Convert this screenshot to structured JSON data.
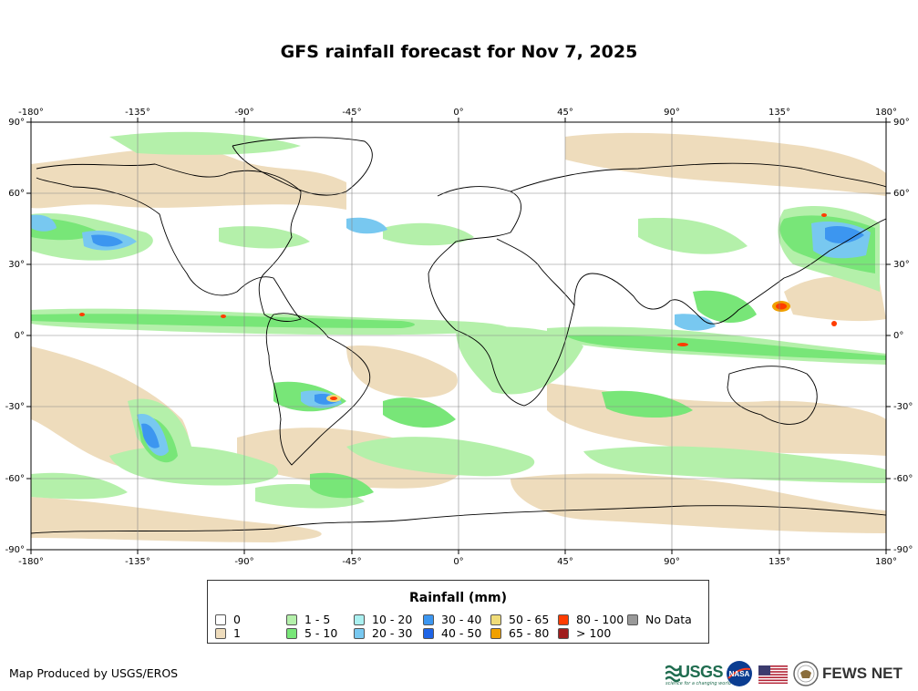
{
  "title": "GFS rainfall forecast for Nov 7, 2025",
  "map": {
    "lon_ticks": [
      "-180°",
      "-135°",
      "-90°",
      "-45°",
      "0°",
      "45°",
      "90°",
      "135°",
      "180°"
    ],
    "lat_ticks": [
      "90°",
      "60°",
      "30°",
      "0°",
      "-30°",
      "-60°",
      "-90°"
    ],
    "lon_range": [
      -180,
      180
    ],
    "lat_range": [
      -90,
      90
    ],
    "grid": true,
    "projection": "equirectangular",
    "base_colors": {
      "land_border": "#000000",
      "ocean_no_rain": "#ffffff"
    }
  },
  "legend": {
    "title": "Rainfall (mm)",
    "items": [
      {
        "label": "0",
        "color": "#ffffff"
      },
      {
        "label": "1",
        "color": "#eedcbc"
      },
      {
        "label": "1 - 5",
        "color": "#b4f0aa"
      },
      {
        "label": "5 - 10",
        "color": "#78e678"
      },
      {
        "label": "10 - 20",
        "color": "#aaf0f0"
      },
      {
        "label": "20 - 30",
        "color": "#78c8f0"
      },
      {
        "label": "30 - 40",
        "color": "#3c96f0"
      },
      {
        "label": "40 - 50",
        "color": "#1e64e6"
      },
      {
        "label": "50 - 65",
        "color": "#f0dc78"
      },
      {
        "label": "65 - 80",
        "color": "#f0a000"
      },
      {
        "label": "80 - 100",
        "color": "#ff3c00"
      },
      {
        "label": "> 100",
        "color": "#a01e1e"
      },
      {
        "label": "No Data",
        "color": "#999999"
      }
    ]
  },
  "footer": {
    "producer": "Map Produced by USGS/EROS",
    "logos": [
      "usgs-logo",
      "nasa-logo",
      "us-flag",
      "state-department-seal",
      "fews-net-logo"
    ],
    "usgs_label": "USGS",
    "usgs_tagline": "science for a changing world",
    "nasa_label": "NASA",
    "fews_label": "FEWS NET"
  }
}
